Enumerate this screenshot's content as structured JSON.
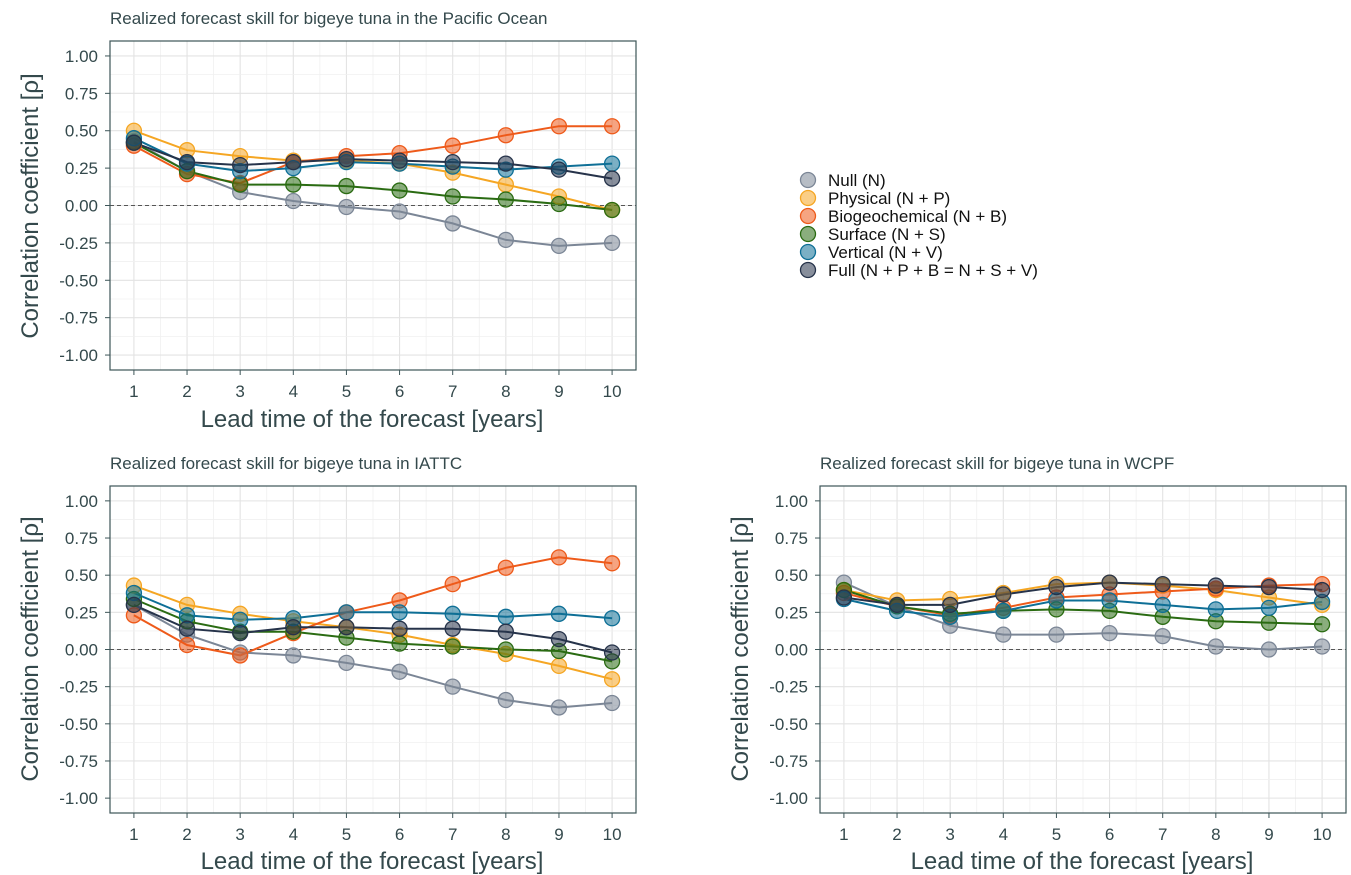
{
  "colors": {
    "null": "#7b8696",
    "physical": "#f5a623",
    "biogeochemical": "#ee5a1a",
    "surface": "#2a6b12",
    "vertical": "#0e6f96",
    "full": "#26334a",
    "panel_border": "#3d5558",
    "text": "#34494c"
  },
  "legend": {
    "items": [
      {
        "key": "null",
        "label": "Null (N)"
      },
      {
        "key": "physical",
        "label": "Physical (N + P)"
      },
      {
        "key": "biogeochemical",
        "label": "Biogeochemical (N + B)"
      },
      {
        "key": "surface",
        "label": "Surface (N + S)"
      },
      {
        "key": "vertical",
        "label": "Vertical (N + V)"
      },
      {
        "key": "full",
        "label": "Full (N + P + B = N + S + V)"
      }
    ]
  },
  "chart_data": [
    {
      "type": "line",
      "title": "Realized forecast skill for bigeye tuna in the Pacific Ocean",
      "xlabel": "Lead time of the forecast [years]",
      "ylabel": "Correlation coefficient [ρ]",
      "x": [
        1,
        2,
        3,
        4,
        5,
        6,
        7,
        8,
        9,
        10
      ],
      "xlim": [
        0.55,
        10.45
      ],
      "ylim": [
        -1.1,
        1.1
      ],
      "yticks": [
        1.0,
        0.75,
        0.5,
        0.25,
        0.0,
        -0.25,
        -0.5,
        -0.75,
        -1.0
      ],
      "ytick_labels": [
        "1.00",
        "0.75",
        "0.50",
        "0.25",
        "0.00",
        "-0.25",
        "-0.50",
        "-0.75",
        "-1.00"
      ],
      "reference_line": 0,
      "grid": true,
      "series": [
        {
          "key": "null",
          "name": "Null (N)",
          "values": [
            0.43,
            0.23,
            0.09,
            0.03,
            -0.01,
            -0.04,
            -0.12,
            -0.23,
            -0.27,
            -0.25
          ]
        },
        {
          "key": "physical",
          "name": "Physical (N + P)",
          "values": [
            0.5,
            0.37,
            0.33,
            0.3,
            0.3,
            0.28,
            0.22,
            0.14,
            0.06,
            -0.03
          ]
        },
        {
          "key": "biogeochemical",
          "name": "Biogeochemical (N + B)",
          "values": [
            0.4,
            0.21,
            0.15,
            0.29,
            0.33,
            0.35,
            0.4,
            0.47,
            0.53,
            0.53
          ]
        },
        {
          "key": "surface",
          "name": "Surface (N + S)",
          "values": [
            0.42,
            0.23,
            0.14,
            0.14,
            0.13,
            0.1,
            0.06,
            0.04,
            0.01,
            -0.03
          ]
        },
        {
          "key": "vertical",
          "name": "Vertical (N + V)",
          "values": [
            0.45,
            0.28,
            0.23,
            0.25,
            0.29,
            0.28,
            0.26,
            0.24,
            0.26,
            0.28
          ]
        },
        {
          "key": "full",
          "name": "Full (N + P + B = N + S + V)",
          "values": [
            0.42,
            0.29,
            0.27,
            0.29,
            0.31,
            0.3,
            0.29,
            0.28,
            0.24,
            0.18
          ]
        }
      ]
    },
    {
      "type": "line",
      "title": "Realized forecast skill for bigeye tuna in IATTC",
      "xlabel": "Lead time of the forecast [years]",
      "ylabel": "Correlation coefficient [ρ]",
      "x": [
        1,
        2,
        3,
        4,
        5,
        6,
        7,
        8,
        9,
        10
      ],
      "xlim": [
        0.55,
        10.45
      ],
      "ylim": [
        -1.1,
        1.1
      ],
      "yticks": [
        1.0,
        0.75,
        0.5,
        0.25,
        0.0,
        -0.25,
        -0.5,
        -0.75,
        -1.0
      ],
      "ytick_labels": [
        "1.00",
        "0.75",
        "0.50",
        "0.25",
        "0.00",
        "-0.25",
        "-0.50",
        "-0.75",
        "-1.00"
      ],
      "reference_line": 0,
      "grid": true,
      "series": [
        {
          "key": "null",
          "name": "Null (N)",
          "values": [
            0.3,
            0.1,
            -0.02,
            -0.04,
            -0.09,
            -0.15,
            -0.25,
            -0.34,
            -0.39,
            -0.36
          ]
        },
        {
          "key": "physical",
          "name": "Physical (N + P)",
          "values": [
            0.43,
            0.3,
            0.24,
            0.19,
            0.15,
            0.1,
            0.03,
            -0.03,
            -0.11,
            -0.2
          ]
        },
        {
          "key": "biogeochemical",
          "name": "Biogeochemical (N + B)",
          "values": [
            0.23,
            0.03,
            -0.04,
            0.11,
            0.25,
            0.33,
            0.44,
            0.55,
            0.62,
            0.58
          ]
        },
        {
          "key": "surface",
          "name": "Surface (N + S)",
          "values": [
            0.34,
            0.19,
            0.12,
            0.12,
            0.08,
            0.04,
            0.02,
            0.0,
            -0.01,
            -0.08
          ]
        },
        {
          "key": "vertical",
          "name": "Vertical (N + V)",
          "values": [
            0.38,
            0.23,
            0.2,
            0.21,
            0.25,
            0.25,
            0.24,
            0.22,
            0.24,
            0.21
          ]
        },
        {
          "key": "full",
          "name": "Full (N + P + B = N + S + V)",
          "values": [
            0.3,
            0.14,
            0.11,
            0.15,
            0.15,
            0.14,
            0.14,
            0.12,
            0.07,
            -0.02
          ]
        }
      ]
    },
    {
      "type": "line",
      "title": "Realized forecast skill for bigeye tuna in WCPF",
      "xlabel": "Lead time of the forecast [years]",
      "ylabel": "Correlation coefficient [ρ]",
      "x": [
        1,
        2,
        3,
        4,
        5,
        6,
        7,
        8,
        9,
        10
      ],
      "xlim": [
        0.55,
        10.45
      ],
      "ylim": [
        -1.1,
        1.1
      ],
      "yticks": [
        1.0,
        0.75,
        0.5,
        0.25,
        0.0,
        -0.25,
        -0.5,
        -0.75,
        -1.0
      ],
      "ytick_labels": [
        "1.00",
        "0.75",
        "0.50",
        "0.25",
        "0.00",
        "-0.25",
        "-0.50",
        "-0.75",
        "-1.00"
      ],
      "reference_line": 0,
      "grid": true,
      "series": [
        {
          "key": "null",
          "name": "Null (N)",
          "values": [
            0.45,
            0.29,
            0.16,
            0.1,
            0.1,
            0.11,
            0.09,
            0.02,
            0.0,
            0.02
          ]
        },
        {
          "key": "physical",
          "name": "Physical (N + P)",
          "values": [
            0.4,
            0.33,
            0.34,
            0.38,
            0.44,
            0.45,
            0.43,
            0.4,
            0.35,
            0.3
          ]
        },
        {
          "key": "biogeochemical",
          "name": "Biogeochemical (N + B)",
          "values": [
            0.38,
            0.29,
            0.23,
            0.28,
            0.35,
            0.37,
            0.39,
            0.41,
            0.43,
            0.44
          ]
        },
        {
          "key": "surface",
          "name": "Surface (N + S)",
          "values": [
            0.4,
            0.29,
            0.24,
            0.26,
            0.27,
            0.26,
            0.22,
            0.19,
            0.18,
            0.17
          ]
        },
        {
          "key": "vertical",
          "name": "Vertical (N + V)",
          "values": [
            0.34,
            0.26,
            0.22,
            0.26,
            0.33,
            0.33,
            0.3,
            0.27,
            0.28,
            0.32
          ]
        },
        {
          "key": "full",
          "name": "Full (N + P + B = N + S + V)",
          "values": [
            0.35,
            0.3,
            0.3,
            0.37,
            0.42,
            0.45,
            0.44,
            0.43,
            0.42,
            0.4
          ]
        }
      ]
    }
  ]
}
